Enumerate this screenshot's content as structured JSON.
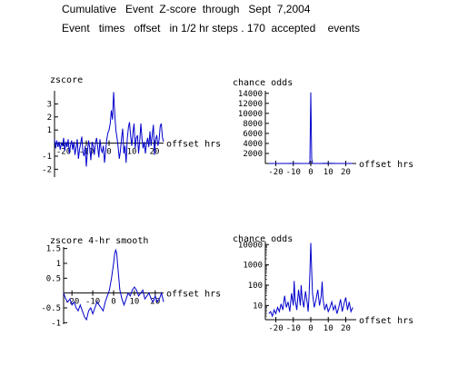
{
  "header": {
    "title": "Cumulative   Event  Z-score  through   Sept  7,2004",
    "subtitle": "Event   times   offset   in 1/2 hr steps . 170  accepted    events"
  },
  "chart_data": [
    {
      "type": "line",
      "title": "zscore",
      "xlabel": "offset hrs",
      "ylabel": "",
      "xlim": [
        -24,
        24
      ],
      "ylim": [
        -2.6,
        4
      ],
      "xticks": [
        -20,
        -10,
        0,
        10,
        20
      ],
      "xtick_labels": [
        "-20",
        "-10",
        "0",
        "10",
        "20"
      ],
      "yticks": [
        3,
        2,
        1,
        -1,
        -2
      ],
      "ytick_labels": [
        "3",
        "2",
        "1",
        "-1",
        "-2"
      ],
      "series": [
        {
          "color": "#0000cc",
          "x": [
            -24,
            -23.5,
            -23,
            -22.5,
            -22,
            -21.5,
            -21,
            -20.5,
            -20,
            -19.5,
            -19,
            -18.5,
            -18,
            -17.5,
            -17,
            -16.5,
            -16,
            -15.5,
            -15,
            -14.5,
            -14,
            -13.5,
            -13,
            -12.5,
            -12,
            -11.5,
            -11,
            -10.5,
            -10,
            -9.5,
            -9,
            -8.5,
            -8,
            -7.5,
            -7,
            -6.5,
            -6,
            -5.5,
            -5,
            -4.5,
            -4,
            -3.5,
            -3,
            -2.5,
            -2,
            -1.5,
            -1,
            -0.5,
            0,
            0.5,
            1,
            1.5,
            2,
            2.5,
            3,
            3.5,
            4,
            4.5,
            5,
            5.5,
            6,
            6.5,
            7,
            7.5,
            8,
            8.5,
            9,
            9.5,
            10,
            10.5,
            11,
            11.5,
            12,
            12.5,
            13,
            13.5,
            14,
            14.5,
            15,
            15.5,
            16,
            16.5,
            17,
            17.5,
            18,
            18.5,
            19,
            19.5,
            20,
            20.5,
            21,
            21.5,
            22,
            22.5,
            23,
            23.5,
            24
          ],
          "values": [
            0.3,
            -0.4,
            0.2,
            -0.3,
            0.1,
            -0.5,
            0.0,
            -0.2,
            0.4,
            -0.6,
            0.1,
            -0.3,
            0.3,
            -0.8,
            -0.2,
            0.2,
            -0.5,
            0.1,
            -0.9,
            -0.3,
            0.3,
            -1.2,
            -0.5,
            0.0,
            0.5,
            -0.7,
            -1.0,
            -0.2,
            -1.8,
            -0.6,
            0.2,
            -0.4,
            -1.3,
            0.1,
            -0.2,
            -0.9,
            0.0,
            0.4,
            -0.3,
            -1.1,
            0.3,
            -0.5,
            -0.7,
            -0.2,
            -1.5,
            -0.6,
            0.3,
            0.8,
            1.0,
            1.5,
            2.5,
            1.8,
            3.9,
            2.2,
            1.0,
            0.4,
            -0.3,
            -1.2,
            -0.6,
            0.4,
            1.1,
            -0.8,
            -0.2,
            -1.5,
            0.3,
            1.2,
            1.6,
            0.5,
            -0.2,
            0.8,
            1.5,
            -0.4,
            0.4,
            0.6,
            -0.8,
            0.2,
            1.5,
            0.3,
            -0.4,
            0.1,
            -0.8,
            0.0,
            0.4,
            -0.3,
            0.9,
            -0.2,
            0.6,
            1.4,
            -0.9,
            0.3,
            0.6,
            -0.2,
            0.2,
            1.3,
            1.5,
            0.4,
            0.1
          ]
        }
      ]
    },
    {
      "type": "line",
      "title": "chance odds",
      "xlabel": "offset hrs",
      "ylabel": "",
      "xlim": [
        -26,
        26
      ],
      "ylim": [
        0,
        14500
      ],
      "xticks": [
        -20,
        -10,
        0,
        10,
        20
      ],
      "xtick_labels": [
        "-20",
        "-10",
        "0",
        "10",
        "20"
      ],
      "yticks": [
        14000,
        12000,
        10000,
        8000,
        6000,
        4000,
        2000
      ],
      "ytick_labels": [
        "14000",
        "12000",
        "10000",
        "8000",
        "6000",
        "4000",
        "2000"
      ],
      "series": [
        {
          "color": "#0000cc",
          "x": [
            -24,
            -20,
            -15,
            -10,
            -5,
            -2,
            -1,
            -0.5,
            0,
            0.5,
            1,
            2,
            5,
            10,
            15,
            20,
            24
          ],
          "values": [
            0,
            3,
            0,
            12,
            5,
            0,
            20,
            300,
            14200,
            900,
            0,
            5,
            0,
            30,
            4,
            0,
            2
          ]
        }
      ]
    },
    {
      "type": "line",
      "title": "zscore 4-hr smooth",
      "xlabel": "offset hrs",
      "ylabel": "",
      "xlim": [
        -24,
        24
      ],
      "ylim": [
        -1.05,
        1.55
      ],
      "xticks": [
        -20,
        -10,
        0,
        10,
        20
      ],
      "xtick_labels": [
        "-20",
        "-10",
        "0",
        "10",
        "20"
      ],
      "yticks": [
        1.5,
        1,
        0.5,
        -0.5,
        -1
      ],
      "ytick_labels": [
        "1.5",
        "1",
        "0.5",
        "-0.5",
        "-1"
      ],
      "series": [
        {
          "color": "#0000cc",
          "x": [
            -24,
            -23,
            -22,
            -21,
            -20,
            -19,
            -18,
            -17,
            -16,
            -15,
            -14,
            -13,
            -12,
            -11,
            -10,
            -9,
            -8,
            -7,
            -6,
            -5,
            -4,
            -3,
            -2,
            -1,
            0,
            0.5,
            1,
            1.5,
            2,
            3,
            4,
            5,
            6,
            7,
            8,
            9,
            10,
            11,
            12,
            13,
            14,
            15,
            16,
            17,
            18,
            19,
            20,
            21,
            22,
            23,
            24
          ],
          "values": [
            0.0,
            -0.2,
            -0.3,
            -0.2,
            -0.4,
            -0.3,
            -0.5,
            -0.6,
            -0.4,
            -0.6,
            -0.8,
            -0.9,
            -0.6,
            -0.5,
            -0.7,
            -0.5,
            -0.3,
            -0.4,
            -0.5,
            -0.6,
            -0.3,
            -0.1,
            0.1,
            0.5,
            1.0,
            1.3,
            1.45,
            1.35,
            0.9,
            0.1,
            -0.2,
            -0.4,
            -0.2,
            0.0,
            -0.1,
            0.1,
            0.2,
            0.1,
            -0.1,
            0.0,
            0.1,
            -0.2,
            -0.1,
            0.0,
            -0.2,
            -0.3,
            -0.1,
            -0.3,
            -0.2,
            0.0,
            -0.3
          ]
        }
      ]
    },
    {
      "type": "line",
      "title": "chance odds",
      "xlabel": "offset hrs",
      "ylabel": "",
      "yscale": "log",
      "xlim": [
        -26,
        26
      ],
      "ylim": [
        2,
        14000
      ],
      "xticks": [
        -20,
        -10,
        0,
        10,
        20
      ],
      "xtick_labels": [
        "-20",
        "-10",
        "0",
        "10",
        "20"
      ],
      "yticks": [
        10000,
        1000,
        100,
        10
      ],
      "ytick_labels": [
        "10000",
        "1000",
        "100",
        "10"
      ],
      "series": [
        {
          "color": "#0000cc",
          "x": [
            -24,
            -23,
            -22,
            -21,
            -20,
            -19,
            -18,
            -17,
            -16,
            -15,
            -14,
            -13,
            -12,
            -11,
            -10,
            -9.5,
            -9,
            -8,
            -7,
            -6,
            -5.5,
            -5,
            -4,
            -3,
            -2,
            -1.5,
            -1,
            -0.5,
            0,
            0.5,
            1,
            2,
            3,
            4,
            5,
            6,
            6.5,
            7,
            8,
            9,
            10,
            11,
            12,
            13,
            14,
            15,
            16,
            17,
            18,
            19,
            20,
            21,
            22,
            23,
            24
          ],
          "values": [
            4,
            5,
            3,
            6,
            4,
            8,
            5,
            12,
            6,
            30,
            8,
            15,
            5,
            40,
            10,
            160,
            20,
            6,
            60,
            10,
            100,
            25,
            8,
            50,
            12,
            5,
            30,
            400,
            12000,
            500,
            40,
            8,
            20,
            60,
            10,
            30,
            150,
            20,
            6,
            12,
            5,
            8,
            15,
            6,
            10,
            4,
            8,
            20,
            5,
            12,
            25,
            6,
            15,
            5,
            8
          ]
        }
      ]
    }
  ]
}
